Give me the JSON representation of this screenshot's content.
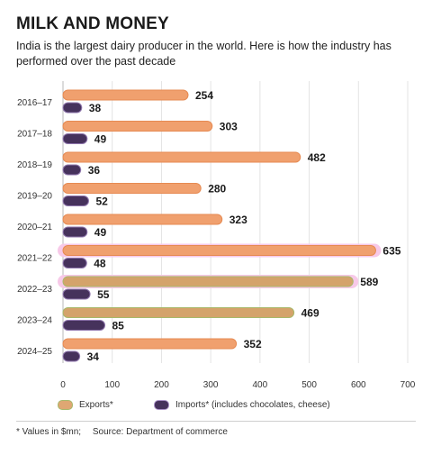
{
  "header": {
    "title": "MILK AND MONEY",
    "subtitle": "India is the largest dairy producer in the world. Here is how the industry has performed over the past decade"
  },
  "chart_data": {
    "type": "bar",
    "orientation": "horizontal",
    "categories": [
      "2016–17",
      "2017–18",
      "2018–19",
      "2019–20",
      "2020–21",
      "2021–22",
      "2022–23",
      "2023–24",
      "2024–25"
    ],
    "series": [
      {
        "name": "Exports*",
        "values": [
          254,
          303,
          482,
          280,
          323,
          635,
          589,
          469,
          352
        ],
        "color": "#f0a06e"
      },
      {
        "name": "Imports* (includes chocolates, cheese)",
        "values": [
          38,
          49,
          36,
          52,
          49,
          48,
          55,
          85,
          34
        ],
        "color": "#46325c"
      }
    ],
    "highlight_color": "#f7c9e8",
    "xlim": [
      0,
      700
    ],
    "xticks": [
      0,
      100,
      200,
      300,
      400,
      500,
      600,
      700
    ],
    "grid": "vertical",
    "legend_position": "bottom"
  },
  "footer": {
    "unit_note": "* Values in $mn;",
    "source": "Source: Department of commerce"
  }
}
